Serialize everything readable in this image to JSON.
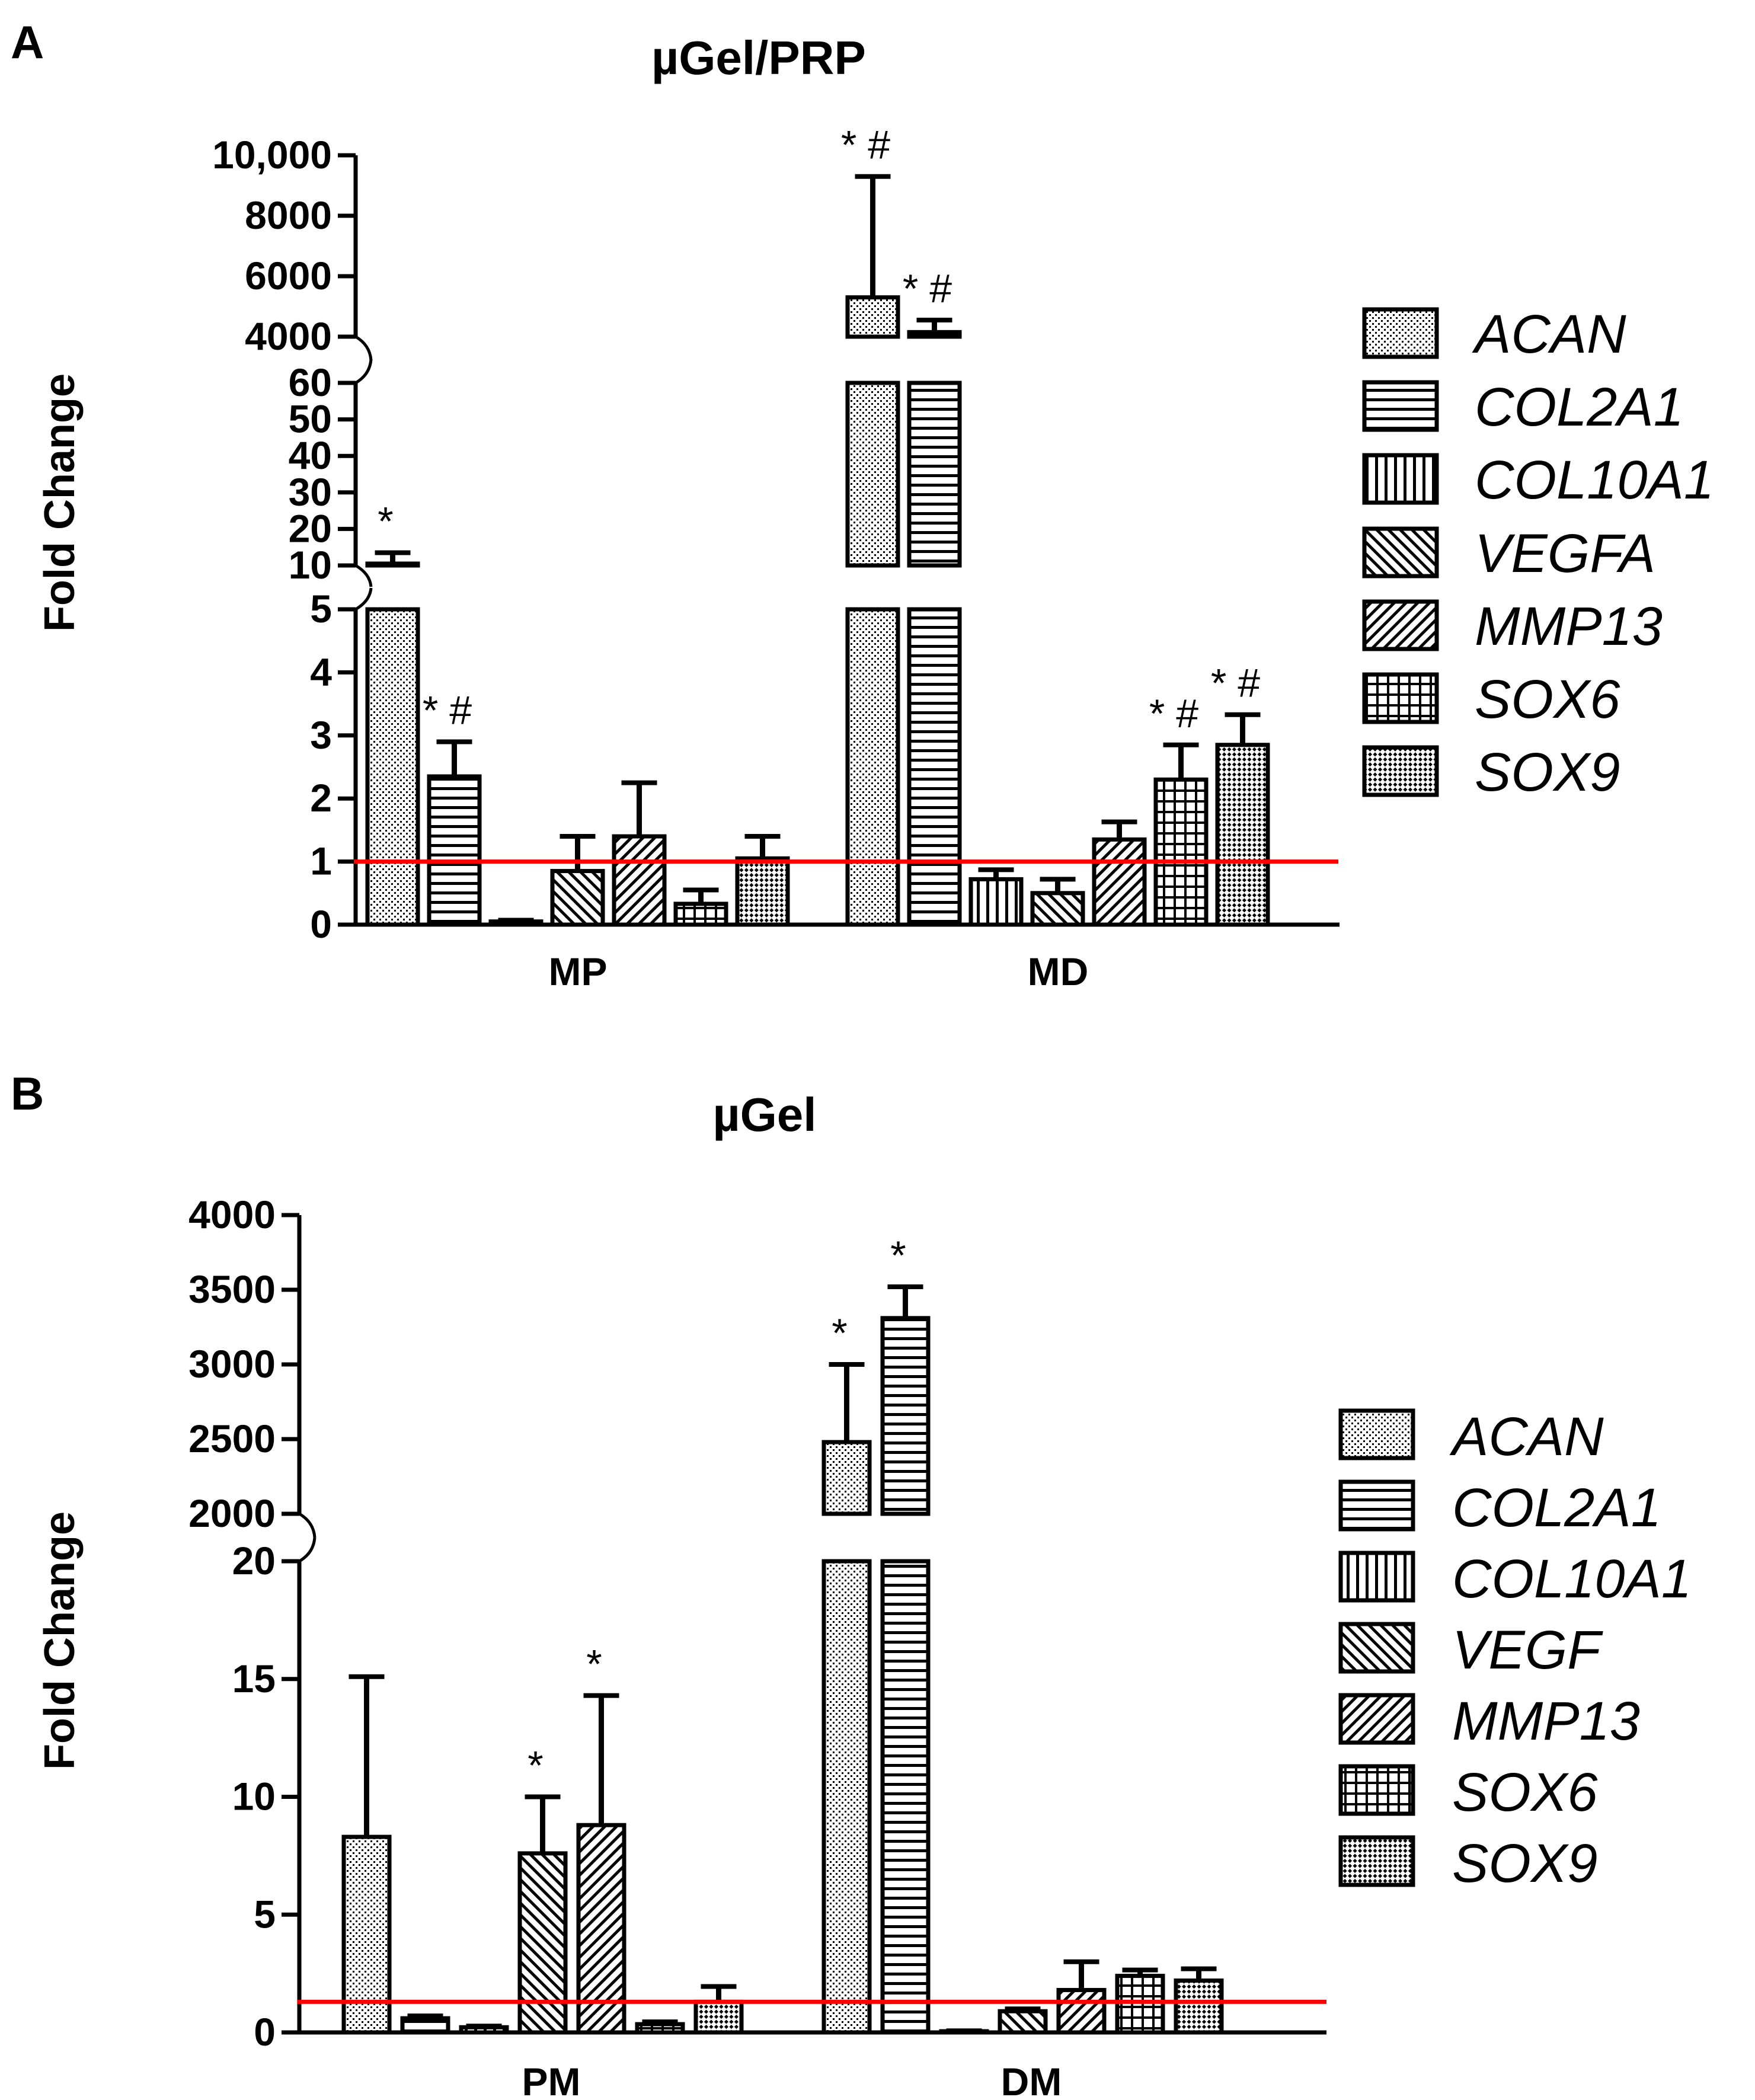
{
  "chart_data": [
    {
      "panel": "A",
      "type": "bar",
      "title": "µGel/PRP",
      "ylabel": "Fold Change",
      "xlabel": "",
      "categories": [
        "MP",
        "MD"
      ],
      "series": [
        {
          "name": "ACAN",
          "values": [
            10.5,
            5300
          ],
          "errors": [
            3,
            4000
          ],
          "sig": [
            "*",
            "*#"
          ]
        },
        {
          "name": "COL2A1",
          "values": [
            2.35,
            4150
          ],
          "errors": [
            0.55,
            400
          ],
          "sig": [
            "*#",
            "*#"
          ]
        },
        {
          "name": "COL10A1",
          "values": [
            0.05,
            0.72
          ],
          "errors": [
            0.02,
            0.15
          ],
          "sig": [
            "",
            ""
          ]
        },
        {
          "name": "VEGFA",
          "values": [
            0.85,
            0.5
          ],
          "errors": [
            0.55,
            0.22
          ],
          "sig": [
            "",
            ""
          ]
        },
        {
          "name": "MMP13",
          "values": [
            1.4,
            1.35
          ],
          "errors": [
            0.85,
            0.28
          ],
          "sig": [
            "",
            ""
          ]
        },
        {
          "name": "SOX6",
          "values": [
            0.33,
            2.3
          ],
          "errors": [
            0.22,
            0.55
          ],
          "sig": [
            "",
            "*#"
          ]
        },
        {
          "name": "SOX9",
          "values": [
            1.05,
            2.85
          ],
          "errors": [
            0.35,
            0.48
          ],
          "sig": [
            "",
            "*#"
          ]
        }
      ],
      "y_segments": [
        {
          "range": [
            0,
            5
          ],
          "ticks": [
            "0",
            "1",
            "2",
            "3",
            "4",
            "5"
          ]
        },
        {
          "range": [
            10,
            60
          ],
          "ticks": [
            "10",
            "20",
            "30",
            "40",
            "50",
            "60"
          ]
        },
        {
          "range": [
            4000,
            10000
          ],
          "ticks": [
            "4000",
            "6000",
            "8000",
            "10,000"
          ]
        }
      ],
      "reference_line": 1,
      "legend": [
        "ACAN",
        "COL2A1",
        "COL10A1",
        "VEGFA",
        "MMP13",
        "SOX6",
        "SOX9"
      ]
    },
    {
      "panel": "B",
      "type": "bar",
      "title": "µGel",
      "ylabel": "Fold Change",
      "xlabel": "",
      "categories": [
        "PM",
        "DM"
      ],
      "series": [
        {
          "name": "ACAN",
          "values": [
            8.3,
            2480
          ],
          "errors": [
            6.8,
            520
          ],
          "sig": [
            "",
            "*"
          ]
        },
        {
          "name": "COL2A1",
          "values": [
            0.6,
            3310
          ],
          "errors": [
            0.1,
            210
          ],
          "sig": [
            "",
            "*"
          ]
        },
        {
          "name": "COL10A1",
          "values": [
            0.22,
            0.05
          ],
          "errors": [
            0.05,
            0.02
          ],
          "sig": [
            "",
            ""
          ]
        },
        {
          "name": "VEGF",
          "values": [
            7.6,
            0.9
          ],
          "errors": [
            2.4,
            0.1
          ],
          "sig": [
            "*",
            ""
          ]
        },
        {
          "name": "MMP13",
          "values": [
            8.8,
            1.8
          ],
          "errors": [
            5.5,
            1.2
          ],
          "sig": [
            "*",
            ""
          ]
        },
        {
          "name": "SOX6",
          "values": [
            0.35,
            2.4
          ],
          "errors": [
            0.1,
            0.25
          ],
          "sig": [
            "",
            ""
          ]
        },
        {
          "name": "SOX9",
          "values": [
            1.3,
            2.2
          ],
          "errors": [
            0.65,
            0.5
          ],
          "sig": [
            "",
            ""
          ]
        }
      ],
      "y_segments": [
        {
          "range": [
            0,
            20
          ],
          "ticks": [
            "0",
            "5",
            "10",
            "15",
            "20"
          ]
        },
        {
          "range": [
            2000,
            4000
          ],
          "ticks": [
            "2000",
            "2500",
            "3000",
            "3500",
            "4000"
          ]
        }
      ],
      "reference_line": 1.3,
      "legend": [
        "ACAN",
        "COL2A1",
        "COL10A1",
        "VEGF",
        "MMP13",
        "SOX6",
        "SOX9"
      ]
    }
  ],
  "reference_line_color": "#ff0000"
}
